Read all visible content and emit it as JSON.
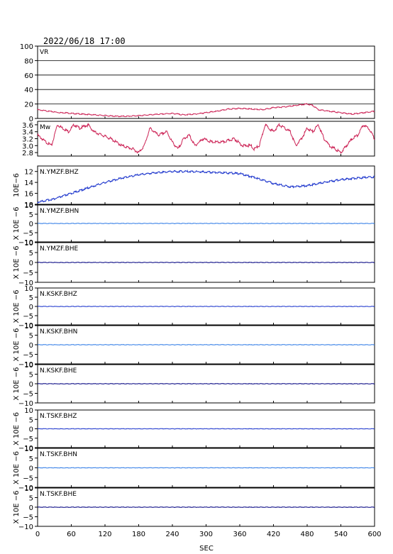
{
  "chart_data": {
    "type": "line",
    "title": "2022/06/18 17:00",
    "xlabel": "SEC",
    "xlim": [
      0,
      600
    ],
    "x_ticks": [
      "0",
      "60",
      "120",
      "180",
      "240",
      "300",
      "360",
      "420",
      "480",
      "540",
      "600"
    ],
    "panels": [
      {
        "label": "VR",
        "ylim": [
          0,
          100
        ],
        "ticks": [
          "100",
          "80",
          "60",
          "40",
          "20",
          "0"
        ],
        "ylabel": "",
        "grid": true,
        "color": "#cc2255",
        "series": {
          "x": [
            0,
            10,
            20,
            30,
            40,
            50,
            60,
            80,
            100,
            120,
            140,
            160,
            180,
            200,
            220,
            240,
            260,
            280,
            300,
            320,
            340,
            360,
            380,
            400,
            420,
            440,
            460,
            480,
            490,
            500,
            520,
            540,
            560,
            580,
            600
          ],
          "y": [
            12,
            11,
            10,
            9,
            8,
            8,
            7,
            6,
            5,
            4,
            3,
            3,
            4,
            5,
            6,
            7,
            5,
            6,
            8,
            10,
            13,
            14,
            13,
            12,
            15,
            16,
            18,
            20,
            18,
            12,
            10,
            8,
            6,
            8,
            10
          ]
        }
      },
      {
        "label": "Mw",
        "ylim": [
          2.7,
          3.7
        ],
        "ticks": [
          "3.6",
          "3.4",
          "3.2",
          "3.0",
          "2.8"
        ],
        "ylabel": "",
        "grid": false,
        "color": "#cc2255",
        "series": {
          "x": [
            0,
            15,
            25,
            35,
            45,
            55,
            65,
            75,
            90,
            100,
            115,
            130,
            150,
            170,
            180,
            190,
            200,
            215,
            230,
            240,
            250,
            260,
            270,
            280,
            295,
            310,
            330,
            350,
            365,
            380,
            385,
            395,
            405,
            420,
            430,
            440,
            450,
            460,
            470,
            480,
            490,
            500,
            510,
            520,
            530,
            540,
            550,
            560,
            570,
            580,
            590,
            600
          ],
          "y": [
            3.3,
            3.1,
            3.0,
            3.6,
            3.5,
            3.4,
            3.6,
            3.5,
            3.6,
            3.4,
            3.3,
            3.2,
            3.0,
            2.9,
            2.8,
            3.0,
            3.5,
            3.3,
            3.4,
            3.1,
            2.9,
            3.2,
            3.3,
            3.0,
            3.2,
            3.1,
            3.1,
            3.2,
            3.0,
            3.0,
            2.9,
            3.0,
            3.6,
            3.4,
            3.6,
            3.5,
            3.4,
            3.0,
            3.2,
            3.5,
            3.4,
            3.6,
            3.2,
            3.0,
            2.9,
            2.8,
            3.0,
            3.2,
            3.3,
            3.6,
            3.5,
            3.2
          ]
        }
      },
      {
        "label": "N.YMZF.BHZ",
        "ylim": [
          18,
          11
        ],
        "ticks": [
          "12",
          "14",
          "16",
          "18"
        ],
        "ylabel": "10E−6",
        "grid": false,
        "color": "#1a33cc",
        "series": {
          "x": [
            0,
            30,
            60,
            90,
            120,
            150,
            180,
            210,
            240,
            270,
            300,
            330,
            360,
            390,
            420,
            450,
            480,
            510,
            540,
            570,
            600
          ],
          "y": [
            17.6,
            17.0,
            16.0,
            15.0,
            14.0,
            13.2,
            12.6,
            12.2,
            12.0,
            12.0,
            12.1,
            12.2,
            12.4,
            13.2,
            14.2,
            14.8,
            14.6,
            14.0,
            13.5,
            13.2,
            13.0
          ]
        }
      },
      {
        "label": "N.YMZF.BHN",
        "ylim": [
          -10,
          10
        ],
        "ticks": [
          "10",
          "5",
          "0",
          "−5",
          "−10"
        ],
        "ylabel": "X 10E −6",
        "grid": false,
        "color": "#2f7be6",
        "series": {
          "x": [
            0,
            600
          ],
          "y": [
            0,
            0
          ]
        }
      },
      {
        "label": "N.YMZF.BHE",
        "ylim": [
          -10,
          10
        ],
        "ticks": [
          "10",
          "5",
          "0",
          "−5",
          "−10"
        ],
        "ylabel": "X 10E −6",
        "grid": false,
        "color": "#000080",
        "series": {
          "x": [
            0,
            600
          ],
          "y": [
            0,
            0
          ]
        }
      },
      {
        "label": "N.KSKF.BHZ",
        "ylim": [
          -10,
          10
        ],
        "ticks": [
          "10",
          "5",
          "0",
          "−5",
          "−10"
        ],
        "ylabel": "X 10E −6",
        "grid": false,
        "color": "#1a33cc",
        "series": {
          "x": [
            0,
            600
          ],
          "y": [
            0,
            0
          ]
        }
      },
      {
        "label": "N.KSKF.BHN",
        "ylim": [
          -10,
          10
        ],
        "ticks": [
          "10",
          "5",
          "0",
          "−5",
          "−10"
        ],
        "ylabel": "X 10E −6",
        "grid": false,
        "color": "#2f7be6",
        "series": {
          "x": [
            0,
            600
          ],
          "y": [
            0,
            0
          ]
        }
      },
      {
        "label": "N.KSKF.BHE",
        "ylim": [
          -10,
          10
        ],
        "ticks": [
          "10",
          "5",
          "0",
          "−5",
          "−10"
        ],
        "ylabel": "X 10E −6",
        "grid": false,
        "color": "#000080",
        "series": {
          "x": [
            0,
            600
          ],
          "y": [
            0,
            0
          ]
        }
      },
      {
        "label": "N.TSKF.BHZ",
        "ylim": [
          -10,
          10
        ],
        "ticks": [
          "10",
          "5",
          "0",
          "−5",
          "−10"
        ],
        "ylabel": "X 10E −6",
        "grid": false,
        "color": "#1a33cc",
        "series": {
          "x": [
            0,
            600
          ],
          "y": [
            0,
            0
          ]
        }
      },
      {
        "label": "N.TSKF.BHN",
        "ylim": [
          -10,
          10
        ],
        "ticks": [
          "10",
          "5",
          "0",
          "−5",
          "−10"
        ],
        "ylabel": "X 10E −6",
        "grid": false,
        "color": "#2f7be6",
        "series": {
          "x": [
            0,
            600
          ],
          "y": [
            0,
            0
          ]
        }
      },
      {
        "label": "N.TSKF.BHE",
        "ylim": [
          -10,
          10
        ],
        "ticks": [
          "10",
          "5",
          "0",
          "−5",
          "−10"
        ],
        "ylabel": "X 10E −6",
        "grid": false,
        "color": "#000080",
        "series": {
          "x": [
            0,
            600
          ],
          "y": [
            0,
            0
          ]
        }
      }
    ]
  }
}
